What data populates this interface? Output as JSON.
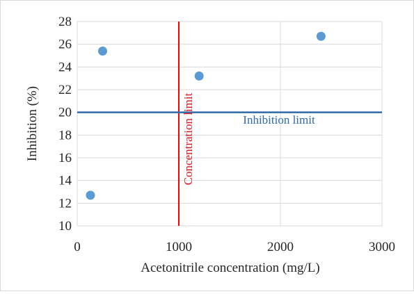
{
  "chart_data": {
    "type": "scatter",
    "title": "",
    "xlabel": "Acetonitrile concentration (mg/L)",
    "ylabel": "Inhibition (%)",
    "xlim": [
      0,
      3000
    ],
    "ylim": [
      10,
      28
    ],
    "x_ticks": [
      0,
      1000,
      2000,
      3000
    ],
    "y_ticks": [
      10,
      12,
      14,
      16,
      18,
      20,
      22,
      24,
      26,
      28
    ],
    "grid": true,
    "legend": "none",
    "points": [
      {
        "x": 130,
        "y": 12.7
      },
      {
        "x": 250,
        "y": 25.4
      },
      {
        "x": 1200,
        "y": 23.2
      },
      {
        "x": 2400,
        "y": 26.7
      }
    ],
    "reference_lines": {
      "concentration_limit": {
        "x": 1000,
        "label": "Concentration  limit",
        "color": "#ff0000"
      },
      "inhibition_limit": {
        "y": 20,
        "label": "Inhibition  limit",
        "color": "#2e6aaa"
      }
    },
    "colors": {
      "point": "#5b9bd5",
      "grid": "#d9d9d9"
    }
  }
}
